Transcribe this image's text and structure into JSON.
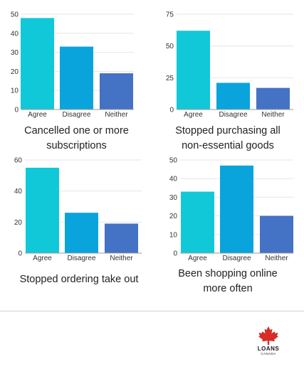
{
  "colors": {
    "agree": "#11c8d8",
    "disagree": "#0aa4dc",
    "neither": "#4472c4",
    "grid": "#e6e6e6",
    "axis": "#9a9a9a"
  },
  "chart_data": [
    {
      "type": "bar",
      "title": "Cancelled one or more subscriptions",
      "categories": [
        "Agree",
        "Disagree",
        "Neither"
      ],
      "values": [
        48,
        33,
        19
      ],
      "ylim": [
        0,
        50
      ],
      "yticks": [
        0,
        10,
        20,
        30,
        40,
        50
      ],
      "grid": true
    },
    {
      "type": "bar",
      "title": "Stopped purchasing all non-essential goods",
      "categories": [
        "Agree",
        "Disagree",
        "Neither"
      ],
      "values": [
        62,
        21,
        17
      ],
      "ylim": [
        0,
        75
      ],
      "yticks": [
        0,
        25,
        50,
        75
      ],
      "grid": true
    },
    {
      "type": "bar",
      "title": "Stopped ordering take out",
      "categories": [
        "Agree",
        "Disagree",
        "Neither"
      ],
      "values": [
        55,
        26,
        19
      ],
      "ylim": [
        0,
        60
      ],
      "yticks": [
        0,
        20,
        40,
        60
      ],
      "grid": true
    },
    {
      "type": "bar",
      "title": "Been shopping online more often",
      "categories": [
        "Agree",
        "Disagree",
        "Neither"
      ],
      "values": [
        33,
        47,
        20
      ],
      "ylim": [
        0,
        50
      ],
      "yticks": [
        0,
        10,
        20,
        30,
        40,
        50
      ],
      "grid": true
    }
  ],
  "captions": [
    [
      "Cancelled one or more",
      "subscriptions"
    ],
    [
      "Stopped purchasing all",
      "non-essential goods"
    ],
    [
      "Stopped ordering take out"
    ],
    [
      "Been shopping online",
      "more often"
    ]
  ],
  "logo": {
    "name": "LOANS",
    "sub": "CANADA",
    "icon": "maple-leaf-icon"
  }
}
